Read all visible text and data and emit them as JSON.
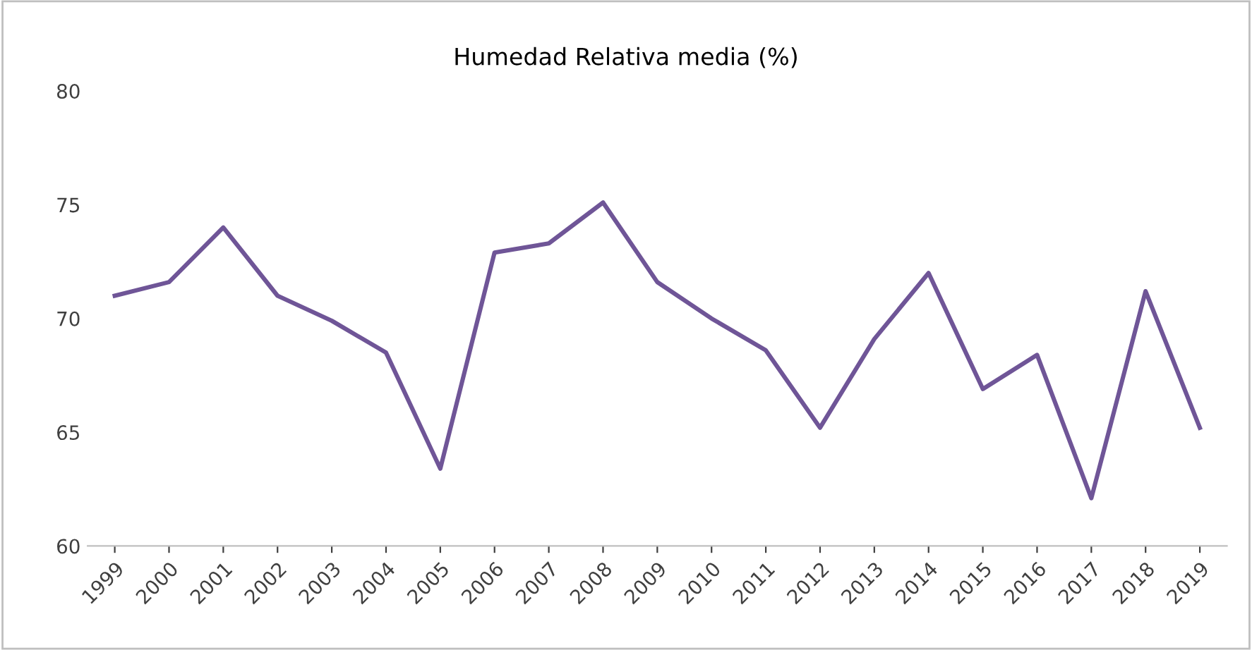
{
  "chart_data": {
    "type": "line",
    "title": "Humedad Relativa media (%)",
    "categories": [
      "1999",
      "2000",
      "2001",
      "2002",
      "2003",
      "2004",
      "2005",
      "2006",
      "2007",
      "2008",
      "2009",
      "2010",
      "2011",
      "2012",
      "2013",
      "2014",
      "2015",
      "2016",
      "2017",
      "2018",
      "2019"
    ],
    "series": [
      {
        "color": "#6f5597",
        "values": [
          71.0,
          71.6,
          74.0,
          71.0,
          69.9,
          68.5,
          63.4,
          72.9,
          73.3,
          75.1,
          71.6,
          70.0,
          68.6,
          65.2,
          69.1,
          72.0,
          66.9,
          68.4,
          62.1,
          71.2,
          65.2
        ]
      }
    ],
    "ylim": [
      60,
      80
    ],
    "yticks": [
      60,
      65,
      70,
      75,
      80
    ],
    "grid": false,
    "legend": false,
    "marker": "none",
    "line_style": "solid"
  }
}
